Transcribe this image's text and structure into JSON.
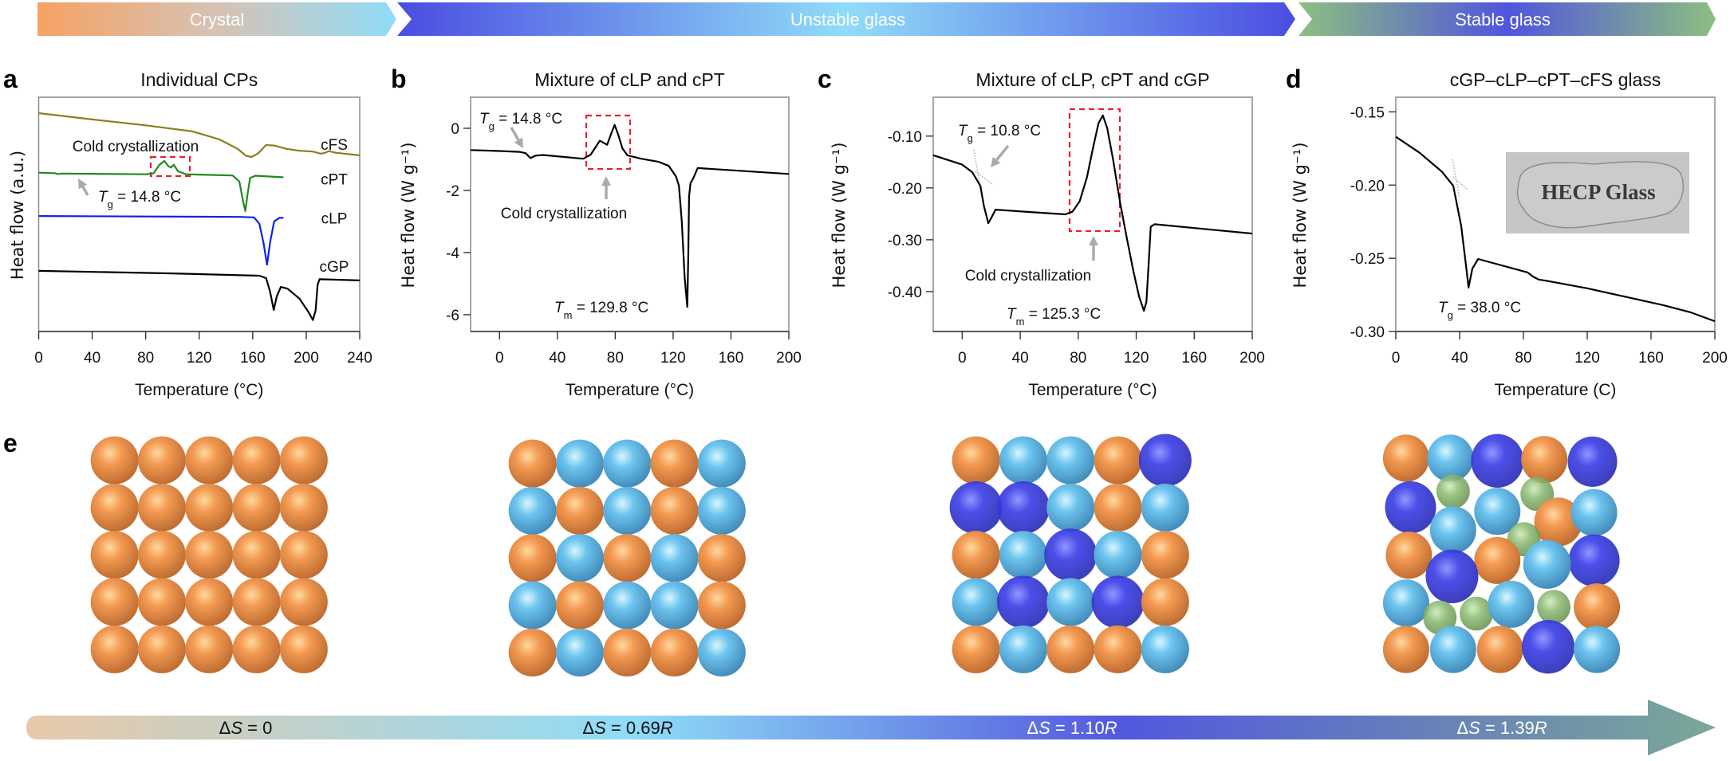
{
  "banner": [
    {
      "label": "Crystal"
    },
    {
      "label": "Unstable glass"
    },
    {
      "label": "Stable glass"
    }
  ],
  "colors": {
    "orange": "#e98a45",
    "lightblue": "#6cc0ea",
    "blue": "#3c3fdf",
    "green": "#8ab86f",
    "cFS": "#8a8020",
    "cPT": "#1f8a1f",
    "cLP": "#1020e8",
    "cGP": "#000000",
    "highlight_box": "#e8202a",
    "arrow": "#aaaaaa"
  },
  "chart_data": [
    {
      "panel": "a",
      "type": "line",
      "title": "Individual CPs",
      "xlabel": "Temperature (°C)",
      "ylabel": "Heat flow (a.u.)",
      "xlim": [
        0,
        240
      ],
      "xticks": [
        0,
        40,
        80,
        120,
        160,
        200,
        240
      ],
      "ylim": [
        0,
        100
      ],
      "yticks": [],
      "grid": false,
      "series": [
        {
          "name": "cFS",
          "color": "#8a8020",
          "points": [
            [
              0,
              93.2
            ],
            [
              40,
              90.5
            ],
            [
              80,
              88
            ],
            [
              115,
              85.4
            ],
            [
              135,
              82
            ],
            [
              149,
              77.9
            ],
            [
              155,
              75
            ],
            [
              159,
              74.5
            ],
            [
              164,
              76
            ],
            [
              170,
              79.6
            ],
            [
              176,
              79.4
            ],
            [
              185,
              78
            ],
            [
              194,
              77.2
            ],
            [
              205,
              76.8
            ],
            [
              211,
              75.9
            ],
            [
              214,
              76.3
            ],
            [
              217,
              77
            ],
            [
              222,
              76.3
            ],
            [
              240,
              75.2
            ]
          ]
        },
        {
          "name": "cPT",
          "color": "#1f8a1f",
          "points": [
            [
              0,
              67.8
            ],
            [
              12,
              67.6
            ],
            [
              14.8,
              67.2
            ],
            [
              17,
              67.4
            ],
            [
              80,
              67.1
            ],
            [
              86,
              67.5
            ],
            [
              90,
              71
            ],
            [
              94,
              72.8
            ],
            [
              97,
              70.5
            ],
            [
              99,
              70
            ],
            [
              101,
              71.2
            ],
            [
              104,
              68.5
            ],
            [
              110,
              67.1
            ],
            [
              145,
              66.6
            ],
            [
              150,
              64
            ],
            [
              153,
              55
            ],
            [
              154.5,
              51.4
            ],
            [
              156,
              58
            ],
            [
              158,
              65.5
            ],
            [
              162,
              66.5
            ],
            [
              183,
              65.8
            ]
          ]
        },
        {
          "name": "cLP",
          "color": "#1020e8",
          "points": [
            [
              0,
              49.3
            ],
            [
              150,
              48.9
            ],
            [
              161,
              48.7
            ],
            [
              165,
              46
            ],
            [
              168,
              38
            ],
            [
              170.7,
              28.5
            ],
            [
              173,
              38
            ],
            [
              176,
              47
            ],
            [
              180,
              48.5
            ],
            [
              183,
              48.5
            ]
          ]
        },
        {
          "name": "cGP",
          "color": "#000000",
          "points": [
            [
              0,
              25.9
            ],
            [
              100,
              24.8
            ],
            [
              165,
              23.8
            ],
            [
              170,
              22.8
            ],
            [
              173,
              17
            ],
            [
              175.7,
              9.2
            ],
            [
              178,
              15
            ],
            [
              181,
              19
            ],
            [
              186,
              18.3
            ],
            [
              195,
              14
            ],
            [
              202,
              8
            ],
            [
              205,
              4.9
            ],
            [
              207,
              9
            ],
            [
              208.5,
              20
            ],
            [
              210,
              22.3
            ],
            [
              240,
              21.8
            ]
          ]
        }
      ],
      "annotations": {
        "cold_crystallization": "Cold crystallization",
        "tg": {
          "symbol": "T",
          "sub": "g",
          "value": " = 14.8 °C"
        }
      }
    },
    {
      "panel": "b",
      "type": "line",
      "title": "Mixture of cLP and cPT",
      "xlabel": "Temperature (°C)",
      "ylabel": "Heat flow (W g⁻¹)",
      "xlim": [
        -20,
        200
      ],
      "xticks": [
        0,
        40,
        80,
        120,
        160,
        200
      ],
      "ylim": [
        -6.54,
        1.0
      ],
      "yticks": [
        0,
        -2,
        -4,
        -6
      ],
      "ytick_labels": [
        "0",
        "-2",
        "-4",
        "-6"
      ],
      "grid": false,
      "series": [
        {
          "color": "#000000",
          "points": [
            [
              -20,
              -0.7
            ],
            [
              0,
              -0.73
            ],
            [
              13.8,
              -0.76
            ],
            [
              18,
              -0.8
            ],
            [
              21.4,
              -0.96
            ],
            [
              25,
              -0.88
            ],
            [
              30,
              -0.86
            ],
            [
              57.8,
              -0.98
            ],
            [
              63,
              -0.85
            ],
            [
              69.3,
              -0.4
            ],
            [
              74.4,
              -0.53
            ],
            [
              77,
              -0.2
            ],
            [
              79.6,
              0.11
            ],
            [
              82,
              -0.2
            ],
            [
              85,
              -0.65
            ],
            [
              88.4,
              -0.87
            ],
            [
              98,
              -0.98
            ],
            [
              110,
              -1.08
            ],
            [
              117,
              -1.21
            ],
            [
              122,
              -1.55
            ],
            [
              124,
              -1.85
            ],
            [
              126,
              -3
            ],
            [
              128,
              -4.8
            ],
            [
              129.8,
              -5.75
            ],
            [
              130.5,
              -4
            ],
            [
              131,
              -2.2
            ],
            [
              132,
              -1.77
            ],
            [
              134,
              -1.6
            ],
            [
              137,
              -1.28
            ],
            [
              200,
              -1.47
            ]
          ]
        }
      ],
      "annotations": {
        "cold_crystallization": "Cold crystallization",
        "tg": {
          "symbol": "T",
          "sub": "g",
          "value": " = 14.8 °C"
        },
        "tm": {
          "symbol": "T",
          "sub": "m",
          "value": " = 129.8 °C"
        }
      }
    },
    {
      "panel": "c",
      "type": "line",
      "title": "Mixture of cLP, cPT and cGP",
      "xlabel": "Temperature (°C)",
      "ylabel": "Heat flow (W g⁻¹)",
      "xlim": [
        -20,
        200
      ],
      "xticks": [
        0,
        40,
        80,
        120,
        160,
        200
      ],
      "ylim": [
        -0.477,
        -0.025
      ],
      "yticks": [
        -0.1,
        -0.2,
        -0.3,
        -0.4
      ],
      "ytick_labels": [
        "-0.10",
        "-0.20",
        "-0.30",
        "-0.40"
      ],
      "grid": false,
      "series": [
        {
          "color": "#000000",
          "points": [
            [
              -20,
              -0.137
            ],
            [
              0,
              -0.155
            ],
            [
              7,
              -0.17
            ],
            [
              12.5,
              -0.196
            ],
            [
              15,
              -0.235
            ],
            [
              18,
              -0.268
            ],
            [
              20,
              -0.258
            ],
            [
              23,
              -0.242
            ],
            [
              49,
              -0.247
            ],
            [
              71,
              -0.251
            ],
            [
              76,
              -0.246
            ],
            [
              81,
              -0.226
            ],
            [
              86,
              -0.18
            ],
            [
              90.5,
              -0.119
            ],
            [
              94,
              -0.075
            ],
            [
              97,
              -0.06
            ],
            [
              100,
              -0.085
            ],
            [
              104,
              -0.145
            ],
            [
              109,
              -0.23
            ],
            [
              113.6,
              -0.298
            ],
            [
              118,
              -0.36
            ],
            [
              122,
              -0.41
            ],
            [
              125.3,
              -0.437
            ],
            [
              127,
              -0.42
            ],
            [
              128.5,
              -0.35
            ],
            [
              130,
              -0.275
            ],
            [
              132.6,
              -0.27
            ],
            [
              200,
              -0.288
            ]
          ]
        }
      ],
      "annotations": {
        "cold_crystallization": "Cold crystallization",
        "tg": {
          "symbol": "T",
          "sub": "g",
          "value": " = 10.8 °C"
        },
        "tm": {
          "symbol": "T",
          "sub": "m",
          "value": " = 125.3 °C"
        }
      }
    },
    {
      "panel": "d",
      "type": "line",
      "title": "cGP–cLP–cPT–cFS glass",
      "xlabel": "Temperature (C)",
      "ylabel": "Heat flow (W g⁻¹)",
      "xlim": [
        0,
        200
      ],
      "xticks": [
        0,
        40,
        80,
        120,
        160,
        200
      ],
      "ylim": [
        -0.3,
        -0.14
      ],
      "yticks": [
        -0.15,
        -0.2,
        -0.25,
        -0.3
      ],
      "ytick_labels": [
        "-0.15",
        "-0.20",
        "-0.25",
        "-0.30"
      ],
      "grid": false,
      "series": [
        {
          "color": "#000000",
          "points": [
            [
              0,
              -0.167
            ],
            [
              15,
              -0.178
            ],
            [
              29,
              -0.191
            ],
            [
              36,
              -0.2005
            ],
            [
              41,
              -0.228
            ],
            [
              44,
              -0.255
            ],
            [
              45.6,
              -0.27
            ],
            [
              48,
              -0.257
            ],
            [
              51.6,
              -0.2505
            ],
            [
              82.5,
              -0.2596
            ],
            [
              86,
              -0.2625
            ],
            [
              89.6,
              -0.2645
            ],
            [
              95,
              -0.2655
            ],
            [
              120,
              -0.2705
            ],
            [
              167.6,
              -0.282
            ],
            [
              185,
              -0.287
            ],
            [
              200,
              -0.293
            ]
          ]
        }
      ],
      "annotations": {
        "tg": {
          "symbol": "T",
          "sub": "g",
          "value": " = 38.0 °C"
        },
        "inset_photo_text": "HECP Glass"
      }
    }
  ],
  "panel_e": {
    "label": "e",
    "grids": [
      {
        "spheres": [
          "orange",
          "orange",
          "orange",
          "orange",
          "orange",
          "orange",
          "orange",
          "orange",
          "orange",
          "orange",
          "orange",
          "orange",
          "orange",
          "orange",
          "orange",
          "orange",
          "orange",
          "orange",
          "orange",
          "orange",
          "orange",
          "orange",
          "orange",
          "orange",
          "orange"
        ]
      },
      {
        "spheres": [
          "orange",
          "lightblue",
          "lightblue",
          "orange",
          "lightblue",
          "lightblue",
          "orange",
          "lightblue",
          "orange",
          "lightblue",
          "orange",
          "lightblue",
          "orange",
          "lightblue",
          "orange",
          "lightblue",
          "orange",
          "lightblue",
          "lightblue",
          "orange",
          "orange",
          "lightblue",
          "orange",
          "orange",
          "lightblue"
        ]
      },
      {
        "spheres": [
          "orange",
          "lightblue",
          "lightblue",
          "orange",
          "blue",
          "blue",
          "blue",
          "lightblue",
          "orange",
          "lightblue",
          "orange",
          "lightblue",
          "blue",
          "lightblue",
          "orange",
          "lightblue",
          "blue",
          "lightblue",
          "blue",
          "orange",
          "orange",
          "lightblue",
          "orange",
          "orange",
          "lightblue"
        ]
      },
      {
        "spheres": [
          "orange",
          "lightblue",
          "blue",
          "orange",
          "blue",
          "blue",
          "green",
          "lightblue",
          "green",
          "orange",
          "lightblue",
          "lightblue",
          "green",
          "blue",
          "orange",
          "orange",
          "lightblue",
          "blue",
          "lightblue",
          "green",
          "green",
          "lightblue",
          "green",
          "orange",
          "orange",
          "lightblue",
          "orange",
          "blue",
          "lightblue"
        ]
      }
    ],
    "entropy": [
      {
        "delta": "Δ",
        "symbol": "S",
        "eq": " = 0",
        "unit": ""
      },
      {
        "delta": "Δ",
        "symbol": "S",
        "eq": " = 0.69",
        "unit": "R"
      },
      {
        "delta": "Δ",
        "symbol": "S",
        "eq": " = 1.10",
        "unit": "R"
      },
      {
        "delta": "Δ",
        "symbol": "S",
        "eq": " = 1.39",
        "unit": "R"
      }
    ]
  }
}
